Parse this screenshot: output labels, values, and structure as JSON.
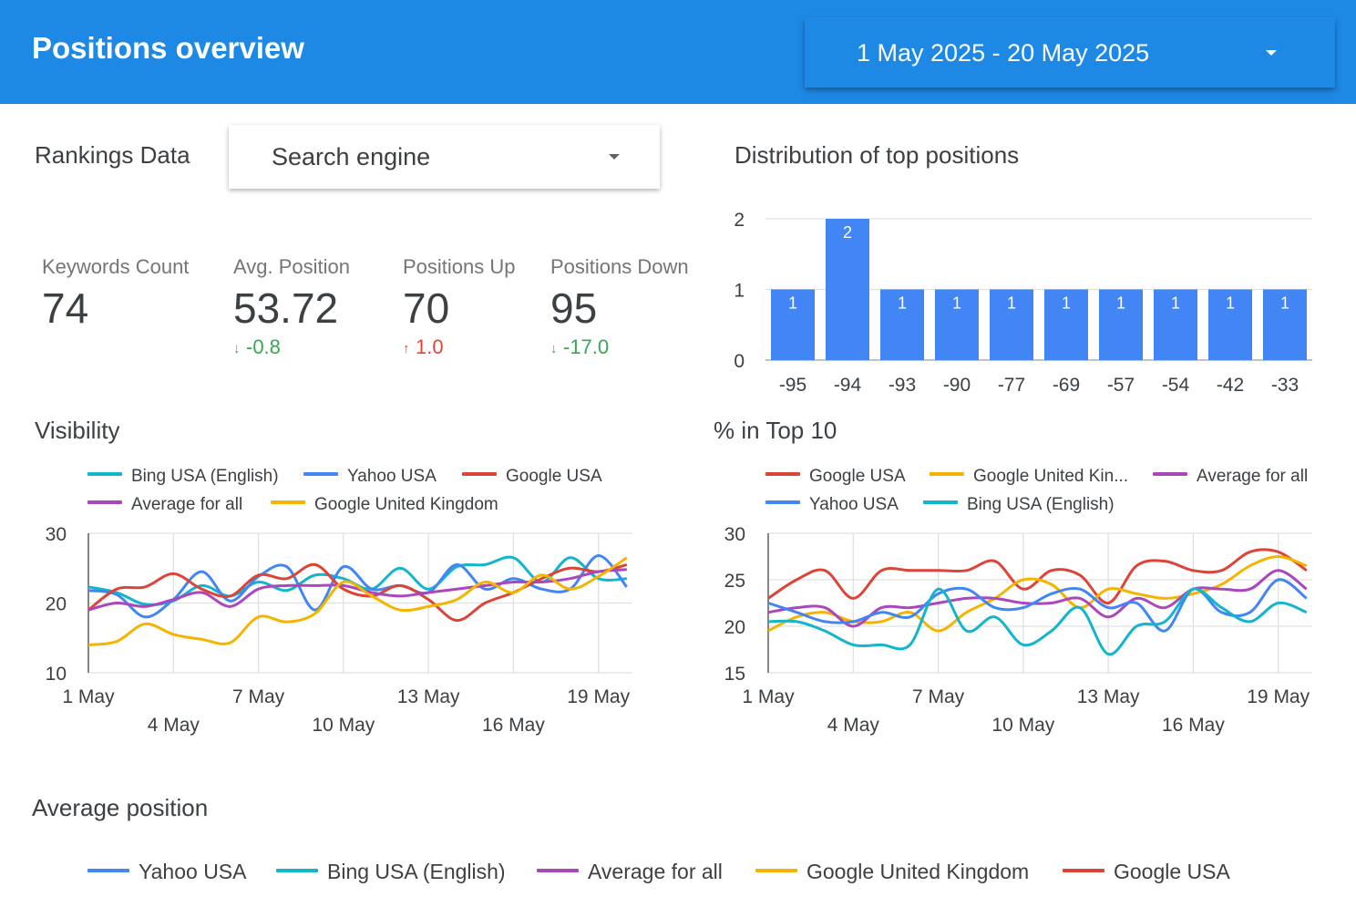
{
  "header": {
    "title": "Positions overview",
    "date_range": "1 May 2025 - 20 May 2025"
  },
  "rankings": {
    "title": "Rankings Data",
    "dropdown_label": "Search engine"
  },
  "kpis": [
    {
      "label": "Keywords Count",
      "value": "74",
      "delta": ""
    },
    {
      "label": "Avg. Position",
      "value": "53.72",
      "delta": "-0.8",
      "direction": "down",
      "color": "#34a853"
    },
    {
      "label": "Positions Up",
      "value": "70",
      "delta": "1.0",
      "direction": "up",
      "color": "#ea4335"
    },
    {
      "label": "Positions Down",
      "value": "95",
      "delta": "-17.0",
      "direction": "down",
      "color": "#34a853"
    }
  ],
  "icons": {
    "down_arrow": "↓",
    "up_arrow": "↑"
  },
  "colors": {
    "header": "#1e88e5",
    "bar": "#4285f4",
    "yahoo": "#4285f4",
    "bing": "#12b5cb",
    "google_usa": "#db4437",
    "average": "#ab47bc",
    "google_uk": "#f4b400"
  },
  "chart_data": [
    {
      "id": "distribution",
      "type": "bar",
      "title": "Distribution of top positions",
      "categories": [
        "-95",
        "-94",
        "-93",
        "-90",
        "-77",
        "-69",
        "-57",
        "-54",
        "-42",
        "-33"
      ],
      "values": [
        1,
        2,
        1,
        1,
        1,
        1,
        1,
        1,
        1,
        1
      ],
      "ylim": [
        0,
        2
      ],
      "yticks": [
        "0",
        "1",
        "2"
      ],
      "grid": true
    },
    {
      "id": "visibility",
      "type": "line",
      "title": "Visibility",
      "ylim": [
        10,
        30
      ],
      "yticks": [
        "10",
        "20",
        "30"
      ],
      "x_ticks_row1": [
        "1 May",
        "7 May",
        "13 May",
        "19 May"
      ],
      "x_ticks_row2": [
        "4 May",
        "10 May",
        "16 May"
      ],
      "legend": [
        "Bing USA (English)",
        "Yahoo USA",
        "Google USA",
        "Average for all",
        "Google United Kingdom"
      ],
      "series": [
        {
          "name": "Bing USA (English)",
          "color": "#12b5cb",
          "values": [
            22.3,
            21.5,
            19.8,
            20.3,
            22.5,
            21.0,
            23.0,
            21.8,
            24.0,
            23.5,
            22.0,
            25.0,
            22.0,
            25.2,
            25.5,
            26.5,
            23.0,
            26.5,
            23.5,
            23.5
          ]
        },
        {
          "name": "Yahoo USA",
          "color": "#4285f4",
          "values": [
            21.8,
            21.2,
            18.0,
            20.5,
            24.5,
            20.3,
            23.8,
            25.2,
            19.0,
            25.2,
            22.0,
            22.5,
            21.5,
            25.5,
            22.0,
            23.5,
            22.0,
            22.0,
            26.8,
            22.3
          ]
        },
        {
          "name": "Google USA",
          "color": "#db4437",
          "values": [
            19.0,
            22.0,
            22.3,
            24.2,
            22.0,
            21.0,
            24.0,
            23.5,
            25.5,
            22.0,
            21.0,
            22.5,
            20.5,
            17.5,
            20.0,
            21.5,
            23.5,
            25.0,
            24.5,
            25.5
          ]
        },
        {
          "name": "Average for all",
          "color": "#ab47bc",
          "values": [
            19.0,
            20.0,
            19.5,
            20.5,
            21.5,
            19.5,
            22.0,
            22.5,
            22.5,
            22.5,
            21.5,
            21.0,
            21.5,
            22.0,
            22.5,
            23.0,
            23.0,
            23.5,
            24.5,
            24.8
          ]
        },
        {
          "name": "Google United Kingdom",
          "color": "#f4b400",
          "values": [
            14.0,
            14.5,
            17.0,
            15.5,
            14.8,
            14.3,
            18.0,
            17.3,
            18.5,
            23.0,
            21.0,
            19.0,
            19.5,
            20.5,
            23.0,
            21.5,
            24.0,
            22.0,
            23.8,
            26.5
          ]
        }
      ]
    },
    {
      "id": "top10",
      "type": "line",
      "title": "% in Top 10",
      "ylim": [
        15,
        30
      ],
      "yticks": [
        "15",
        "20",
        "25",
        "30"
      ],
      "x_ticks_row1": [
        "1 May",
        "7 May",
        "13 May",
        "19 May"
      ],
      "x_ticks_row2": [
        "4 May",
        "10 May",
        "16 May"
      ],
      "legend": [
        "Google USA",
        "Google United Kin...",
        "Average for all",
        "Yahoo USA",
        "Bing USA (English)"
      ],
      "series": [
        {
          "name": "Google USA",
          "color": "#db4437",
          "values": [
            23.0,
            25.0,
            26.0,
            23.0,
            26.0,
            26.0,
            26.0,
            26.0,
            27.0,
            24.0,
            26.0,
            25.5,
            22.5,
            26.5,
            27.0,
            26.0,
            26.0,
            28.0,
            28.0,
            26.0
          ]
        },
        {
          "name": "Google United Kingdom",
          "color": "#f4b400",
          "values": [
            19.5,
            21.0,
            21.5,
            20.5,
            20.5,
            21.5,
            19.5,
            21.5,
            23.0,
            25.0,
            24.5,
            22.0,
            24.0,
            23.5,
            23.0,
            23.5,
            24.5,
            26.5,
            27.5,
            26.5
          ]
        },
        {
          "name": "Average for all",
          "color": "#ab47bc",
          "values": [
            21.5,
            22.0,
            22.0,
            20.0,
            22.0,
            22.0,
            22.5,
            23.0,
            23.0,
            22.5,
            22.5,
            23.0,
            21.0,
            23.0,
            22.0,
            24.0,
            24.0,
            24.0,
            26.0,
            24.0
          ]
        },
        {
          "name": "Yahoo USA",
          "color": "#4285f4",
          "values": [
            22.5,
            21.5,
            20.5,
            20.5,
            21.5,
            21.0,
            23.5,
            24.0,
            22.0,
            22.0,
            23.5,
            24.0,
            22.0,
            22.5,
            19.5,
            24.0,
            21.5,
            21.5,
            25.0,
            23.0
          ]
        },
        {
          "name": "Bing USA (English)",
          "color": "#12b5cb",
          "values": [
            20.5,
            20.5,
            19.5,
            18.0,
            18.0,
            18.0,
            24.0,
            19.5,
            21.0,
            18.0,
            19.5,
            22.0,
            17.0,
            20.0,
            20.5,
            24.0,
            22.0,
            20.5,
            22.5,
            21.5
          ]
        }
      ]
    }
  ],
  "visibility_title": "Visibility",
  "top10_title": "% in Top 10",
  "average_position": {
    "title": "Average position",
    "legend": [
      {
        "name": "Yahoo USA",
        "color": "#4285f4"
      },
      {
        "name": "Bing USA (English)",
        "color": "#12b5cb"
      },
      {
        "name": "Average for all",
        "color": "#ab47bc"
      },
      {
        "name": "Google United Kingdom",
        "color": "#f4b400"
      },
      {
        "name": "Google USA",
        "color": "#db4437"
      }
    ]
  }
}
